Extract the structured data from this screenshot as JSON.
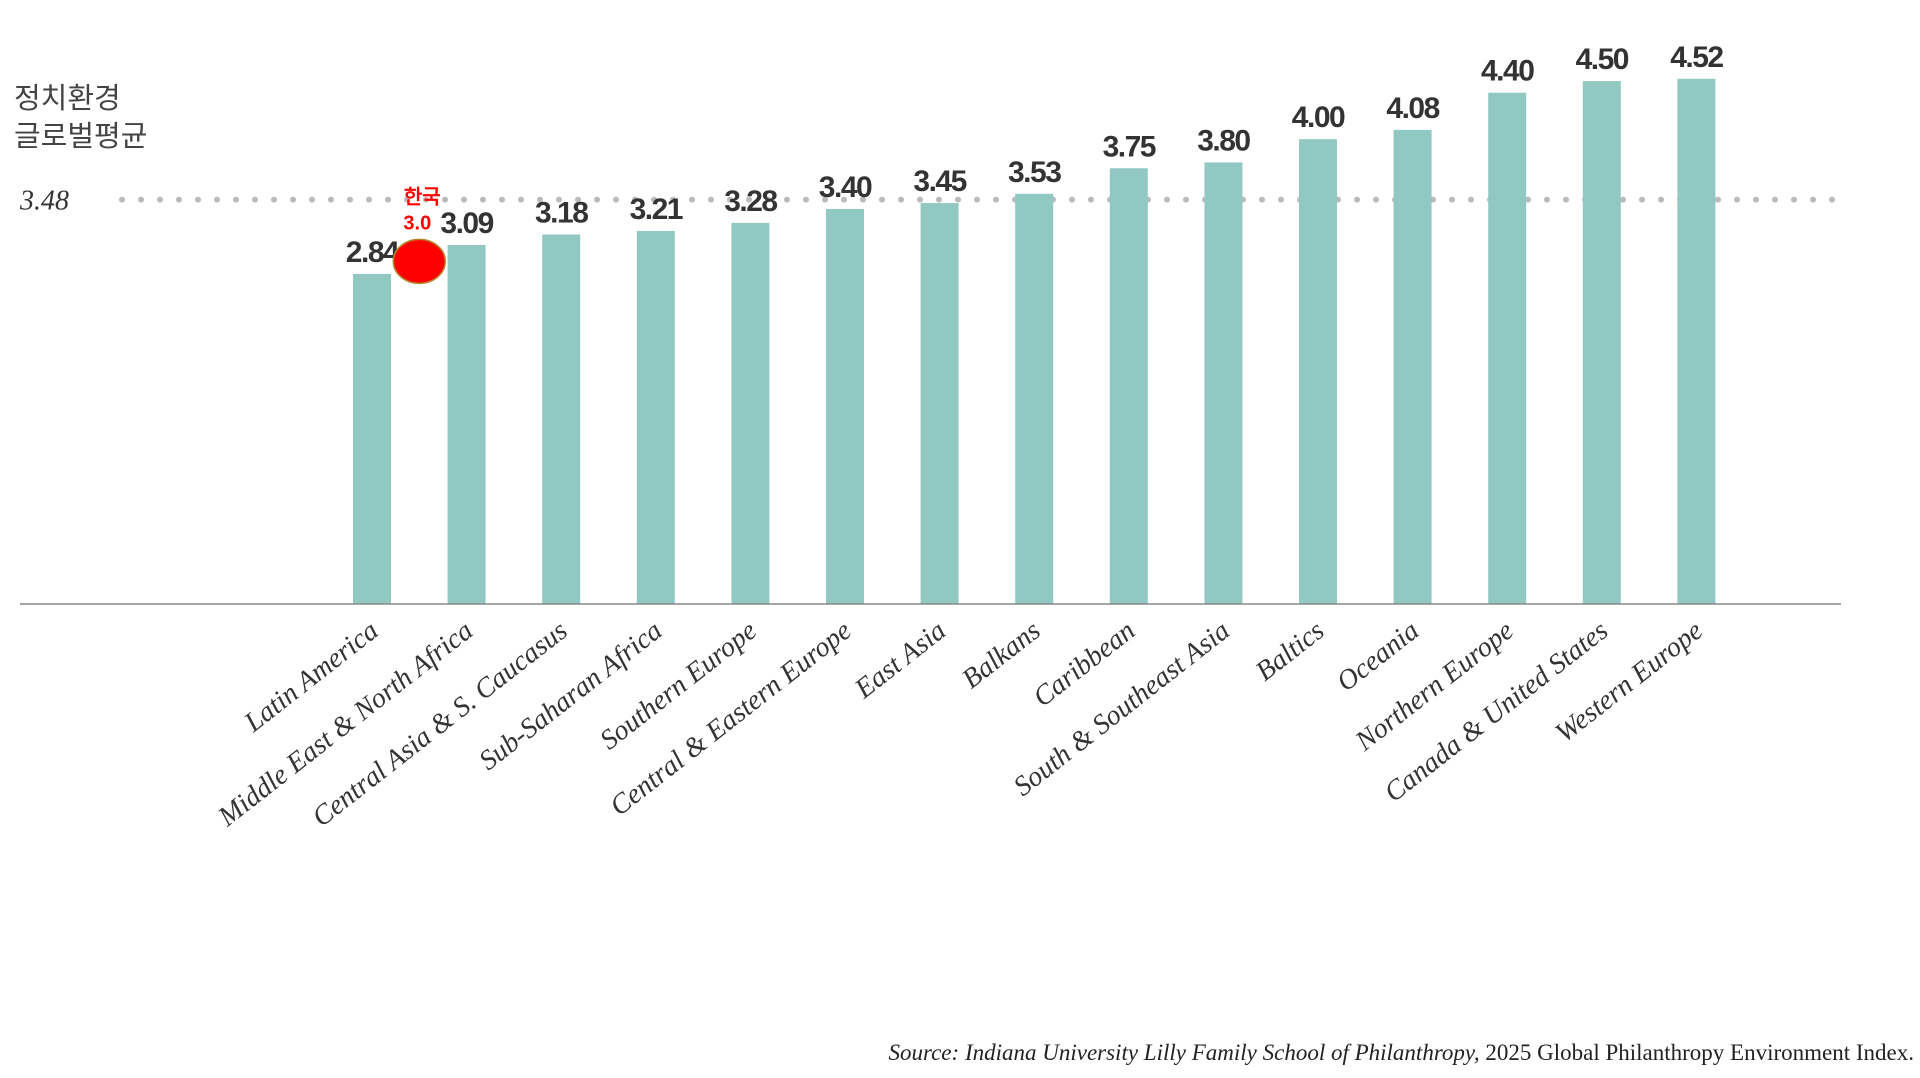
{
  "chart_data": {
    "type": "bar",
    "categories": [
      "Latin America",
      "Middle East & North Africa",
      "Central Asia & S. Caucasus",
      "Sub-Saharan Africa",
      "Southern Europe",
      "Central & Eastern Europe",
      "East Asia",
      "Balkans",
      "Caribbean",
      "South & Southeast Asia",
      "Baltics",
      "Oceania",
      "Northern Europe",
      "Canada & United States",
      "Western Europe"
    ],
    "values": [
      2.84,
      3.09,
      3.18,
      3.21,
      3.28,
      3.4,
      3.45,
      3.53,
      3.75,
      3.8,
      4.0,
      4.08,
      4.4,
      4.5,
      4.52
    ],
    "value_labels": [
      "2.84",
      "3.09",
      "3.18",
      "3.21",
      "3.28",
      "3.40",
      "3.45",
      "3.53",
      "3.75",
      "3.80",
      "4.00",
      "4.08",
      "4.40",
      "4.50",
      "4.52"
    ],
    "color": "#91c8c1",
    "ylim": [
      0,
      5
    ],
    "average": {
      "value": 3.48,
      "value_label": "3.48",
      "label": [
        "정치환경",
        "글로벌평균"
      ]
    },
    "marker": {
      "label": "한국",
      "value": 3.0,
      "value_label": "3.0",
      "color": "#ff0000"
    },
    "source": {
      "prefix": "Source:",
      "italic": "Indiana University Lilly Family School of Philanthropy,",
      "rest": "2025 Global Philanthropy Environment Index."
    }
  }
}
